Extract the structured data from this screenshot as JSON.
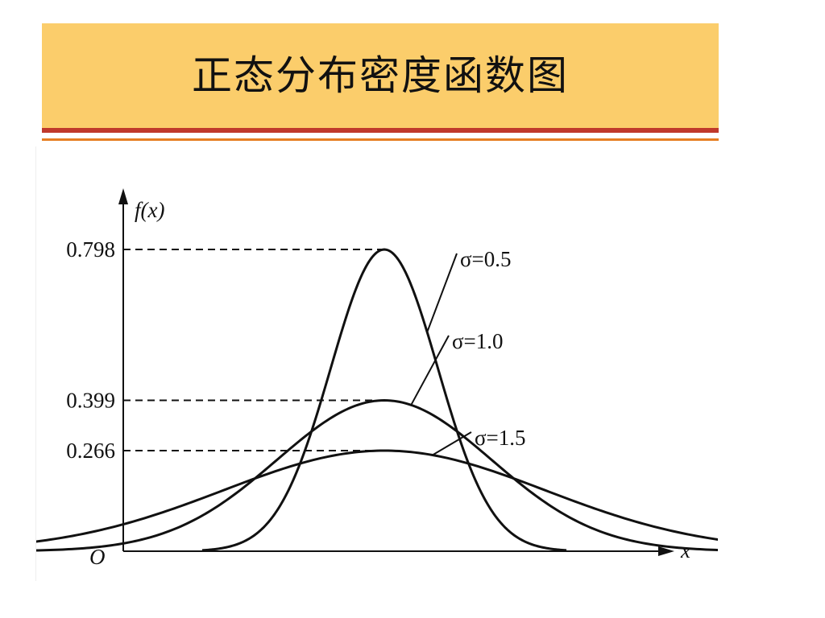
{
  "slide": {
    "title": "正态分布密度函数图"
  },
  "chart_data": {
    "type": "line",
    "title": "",
    "ylabel": "f(x)",
    "xlabel": "x",
    "origin_label": "O",
    "xlim": [
      -4.2,
      4.2
    ],
    "ylim": [
      0,
      0.9
    ],
    "grid": false,
    "mean": 0,
    "ref_lines": [
      {
        "value": 0.798,
        "label": "0.798"
      },
      {
        "value": 0.399,
        "label": "0.399"
      },
      {
        "value": 0.266,
        "label": "0.266"
      }
    ],
    "series": [
      {
        "name": "σ=0.5",
        "sigma": 0.5
      },
      {
        "name": "σ=1.0",
        "sigma": 1.0
      },
      {
        "name": "σ=1.5",
        "sigma": 1.5
      }
    ],
    "line_color": "#111111"
  }
}
